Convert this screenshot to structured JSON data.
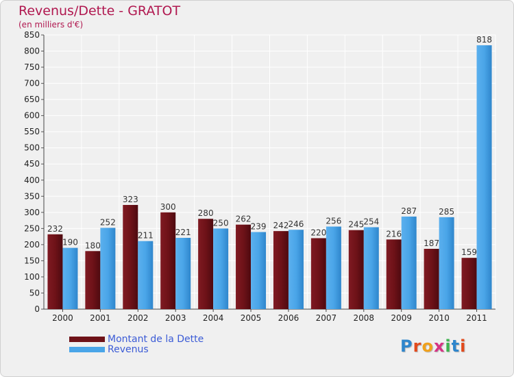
{
  "title": "Revenus/Dette - GRATOT",
  "subtitle": "(en milliers d'€)",
  "colors": {
    "dette": "#6e1218",
    "revenus": "#4aa5e8",
    "title": "#b0174f",
    "legend_text": "#3b5bd6"
  },
  "legend": [
    {
      "label": "Montant de la Dette",
      "color": "#6e1218"
    },
    {
      "label": "Revenus",
      "color": "#4aa5e8"
    }
  ],
  "brand": {
    "text": "Proxiti"
  },
  "chart_data": {
    "type": "bar",
    "categories": [
      "2000",
      "2001",
      "2002",
      "2003",
      "2004",
      "2005",
      "2006",
      "2007",
      "2008",
      "2009",
      "2010",
      "2011"
    ],
    "series": [
      {
        "name": "Montant de la Dette",
        "values": [
          232,
          180,
          323,
          300,
          280,
          262,
          242,
          220,
          245,
          216,
          187,
          159
        ]
      },
      {
        "name": "Revenus",
        "values": [
          190,
          252,
          211,
          221,
          250,
          239,
          246,
          256,
          254,
          287,
          285,
          818
        ]
      }
    ],
    "ylim": [
      0,
      850
    ],
    "yticks": [
      0,
      50,
      100,
      150,
      200,
      250,
      300,
      350,
      400,
      450,
      500,
      550,
      600,
      650,
      700,
      750,
      800,
      850
    ],
    "grid": true,
    "legend_position": "bottom-left"
  }
}
